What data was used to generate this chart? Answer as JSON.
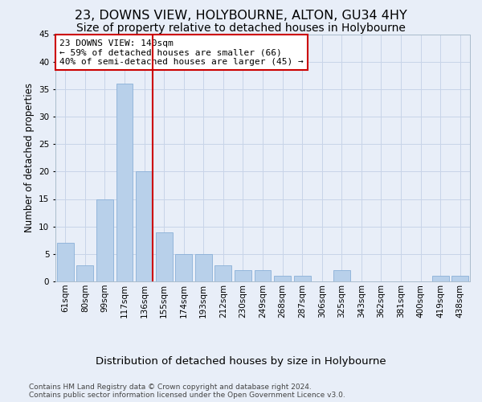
{
  "title": "23, DOWNS VIEW, HOLYBOURNE, ALTON, GU34 4HY",
  "subtitle": "Size of property relative to detached houses in Holybourne",
  "xlabel": "Distribution of detached houses by size in Holybourne",
  "ylabel": "Number of detached properties",
  "categories": [
    "61sqm",
    "80sqm",
    "99sqm",
    "117sqm",
    "136sqm",
    "155sqm",
    "174sqm",
    "193sqm",
    "212sqm",
    "230sqm",
    "249sqm",
    "268sqm",
    "287sqm",
    "306sqm",
    "325sqm",
    "343sqm",
    "362sqm",
    "381sqm",
    "400sqm",
    "419sqm",
    "438sqm"
  ],
  "values": [
    7,
    3,
    15,
    36,
    20,
    9,
    5,
    5,
    3,
    2,
    2,
    1,
    1,
    0,
    2,
    0,
    0,
    0,
    0,
    1,
    1
  ],
  "bar_color": "#b8d0ea",
  "bar_edge_color": "#8ab0d8",
  "grid_color": "#c8d4e8",
  "background_color": "#e8eef8",
  "plot_bg_color": "#e8eef8",
  "vline_x_index": 4,
  "vline_color": "#cc0000",
  "annotation_text": "23 DOWNS VIEW: 140sqm\n← 59% of detached houses are smaller (66)\n40% of semi-detached houses are larger (45) →",
  "annotation_box_color": "#ffffff",
  "annotation_box_edge": "#cc0000",
  "ylim": [
    0,
    45
  ],
  "yticks": [
    0,
    5,
    10,
    15,
    20,
    25,
    30,
    35,
    40,
    45
  ],
  "footer1": "Contains HM Land Registry data © Crown copyright and database right 2024.",
  "footer2": "Contains public sector information licensed under the Open Government Licence v3.0.",
  "title_fontsize": 11.5,
  "subtitle_fontsize": 10,
  "xlabel_fontsize": 9.5,
  "ylabel_fontsize": 8.5,
  "tick_fontsize": 7.5,
  "annotation_fontsize": 8,
  "footer_fontsize": 6.5
}
